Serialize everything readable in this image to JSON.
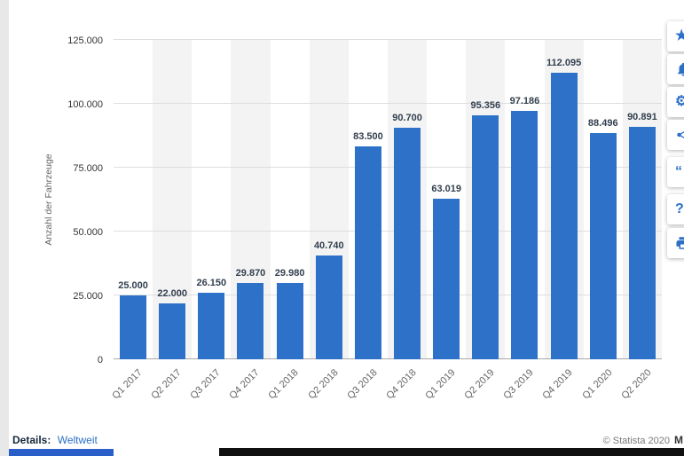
{
  "chart_data": {
    "type": "bar",
    "title": "",
    "xlabel": "",
    "ylabel": "Anzahl der Fahrzeuge",
    "ylim": [
      0,
      125000
    ],
    "ytick_labels": [
      "0",
      "25.000",
      "50.000",
      "75.000",
      "100.000",
      "125.000"
    ],
    "categories": [
      "Q1 2017",
      "Q2 2017",
      "Q3 2017",
      "Q4 2017",
      "Q1 2018",
      "Q2 2018",
      "Q3 2018",
      "Q4 2018",
      "Q1 2019",
      "Q2 2019",
      "Q3 2019",
      "Q4 2019",
      "Q1 2020",
      "Q2 2020"
    ],
    "values": [
      25000,
      22000,
      26150,
      29870,
      29980,
      40740,
      83500,
      90700,
      63019,
      95356,
      97186,
      112095,
      88496,
      90891
    ],
    "value_labels": [
      "25.000",
      "22.000",
      "26.150",
      "29.870",
      "29.980",
      "40.740",
      "83.500",
      "90.700",
      "63.019",
      "95.356",
      "97.186",
      "112.095",
      "88.496",
      "90.891"
    ],
    "bar_color": "#2d72c8",
    "grid": true,
    "legend_position": "none"
  },
  "footer": {
    "details_label": "Details:",
    "details_value": "Weltweit",
    "copyright": "© Statista 2020",
    "copyright_more": "M"
  },
  "sidebar": {
    "icons": [
      {
        "name": "favorite-star-icon",
        "glyph": "★"
      },
      {
        "name": "alert-bell-icon",
        "glyph": ""
      },
      {
        "name": "settings-gear-icon",
        "glyph": "⚙"
      },
      {
        "name": "share-icon",
        "glyph": ""
      },
      {
        "name": "cite-quote-icon",
        "glyph": "“"
      },
      {
        "name": "help-question-icon",
        "glyph": "?"
      },
      {
        "name": "print-icon",
        "glyph": ""
      }
    ]
  }
}
